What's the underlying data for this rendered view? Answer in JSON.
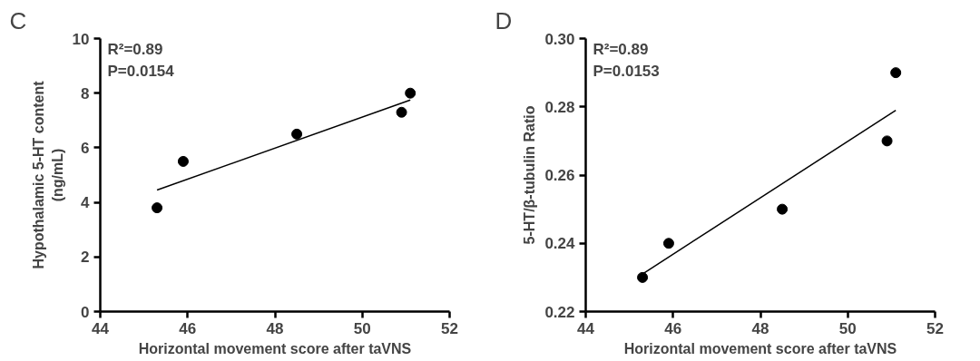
{
  "chart_data": [
    {
      "type": "scatter",
      "title": "C",
      "xlabel": "Horizontal movement score after taVNS",
      "ylabel": "Hypothalamic 5-HT content\n(ng/mL)",
      "xlim": [
        44,
        52
      ],
      "xticks": [
        44,
        46,
        48,
        50,
        52
      ],
      "ylim": [
        0,
        10
      ],
      "yticks": [
        0,
        2,
        4,
        6,
        8,
        10
      ],
      "grid": false,
      "annotations": [
        "R²=0.89",
        "P=0.0154"
      ],
      "series": [
        {
          "marker": "circle",
          "color": "#000000",
          "x": [
            45.3,
            45.9,
            48.5,
            50.9,
            51.1
          ],
          "values": [
            3.8,
            5.5,
            6.5,
            7.3,
            8.0
          ]
        },
        {
          "type": "line",
          "color": "#000000",
          "x": [
            45.3,
            51.1
          ],
          "values": [
            4.45,
            7.75
          ]
        }
      ]
    },
    {
      "type": "scatter",
      "title": "D",
      "xlabel": "Horizontal movement score after taVNS",
      "ylabel": "5-HT/β-tubulin Ratio",
      "xlim": [
        44,
        52
      ],
      "xticks": [
        44,
        46,
        48,
        50,
        52
      ],
      "ylim": [
        0.22,
        0.3
      ],
      "yticks": [
        {
          "value": 0.22,
          "label": "0.22"
        },
        {
          "value": 0.24,
          "label": "0.24"
        },
        {
          "value": 0.26,
          "label": "0.26"
        },
        {
          "value": 0.28,
          "label": "0.28"
        },
        {
          "value": 0.3,
          "label": "0.30"
        }
      ],
      "grid": false,
      "annotations": [
        "R²=0.89",
        "P=0.0153"
      ],
      "series": [
        {
          "marker": "circle",
          "color": "#000000",
          "x": [
            45.3,
            45.9,
            48.5,
            50.9,
            51.1
          ],
          "values": [
            0.23,
            0.24,
            0.25,
            0.27,
            0.29
          ]
        },
        {
          "type": "line",
          "color": "#000000",
          "x": [
            45.3,
            51.1
          ],
          "values": [
            0.231,
            0.279
          ]
        }
      ]
    }
  ]
}
